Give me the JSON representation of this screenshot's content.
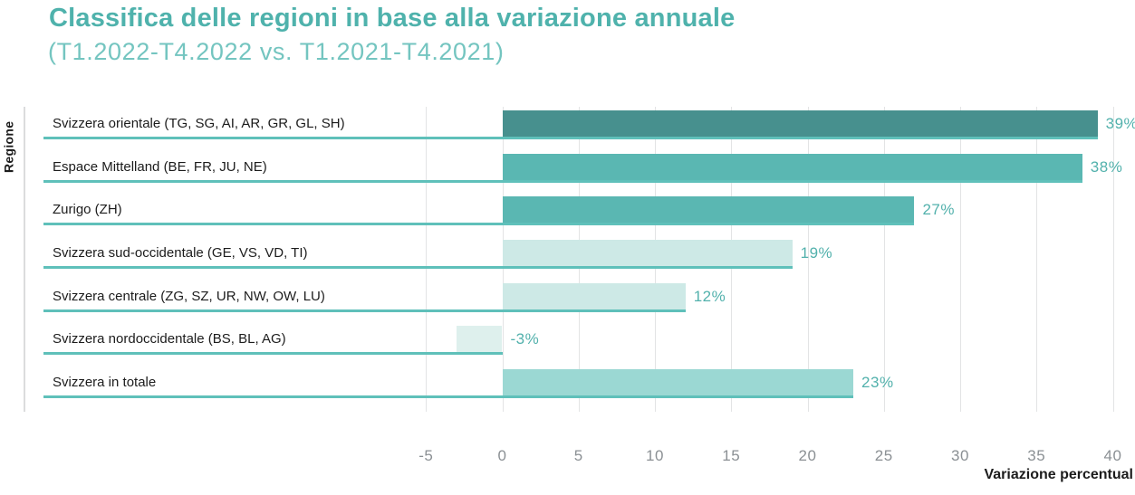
{
  "title": "Classifica delle regioni in base alla variazione annuale",
  "subtitle": "(T1.2022-T4.2022 vs. T1.2021-T4.2021)",
  "y_axis_label": "Regione",
  "x_axis_label": "Variazione percentual",
  "colors": {
    "title": "#4fb2ac",
    "subtitle": "#74c5c0",
    "value_label": "#52b1ac",
    "tick_label": "#8b9094",
    "gridline": "#e3e4e5",
    "axis_line": "#dbdcdd",
    "rule": "#5fc0ba",
    "text_dark": "#1c1c1c"
  },
  "chart_data": {
    "type": "bar",
    "orientation": "horizontal",
    "title": "Classifica delle regioni in base alla variazione annuale",
    "subtitle": "(T1.2022-T4.2022 vs. T1.2021-T4.2021)",
    "xlabel": "Variazione percentual",
    "ylabel": "Regione",
    "xlim": [
      -9,
      41.5
    ],
    "x_ticks": [
      -5,
      0,
      5,
      10,
      15,
      20,
      25,
      30,
      35,
      40
    ],
    "grid": "vertical",
    "legend": "none",
    "bars": [
      {
        "label": "Svizzera orientale (TG, SG, AI, AR, GR, GL, SH)",
        "value": 39,
        "display": "39%",
        "color": "#47908e"
      },
      {
        "label": "Espace Mittelland (BE, FR, JU, NE)",
        "value": 38,
        "display": "38%",
        "color": "#5ab7b2"
      },
      {
        "label": "Zurigo (ZH)",
        "value": 27,
        "display": "27%",
        "color": "#5ab7b2"
      },
      {
        "label": "Svizzera sud-occidentale (GE, VS, VD, TI)",
        "value": 19,
        "display": "19%",
        "color": "#cde9e6"
      },
      {
        "label": "Svizzera centrale (ZG, SZ, UR, NW, OW, LU)",
        "value": 12,
        "display": "12%",
        "color": "#cde9e6"
      },
      {
        "label": "Svizzera nordoccidentale (BS, BL, AG)",
        "value": -3,
        "display": "-3%",
        "color": "#def0ed"
      },
      {
        "label": "Svizzera in totale",
        "value": 23,
        "display": "23%",
        "color": "#9bd8d3"
      }
    ]
  }
}
